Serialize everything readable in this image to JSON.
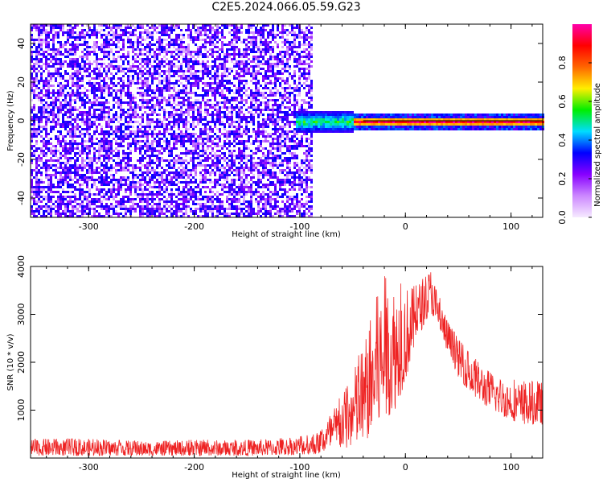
{
  "title": "C2E5.2024.066.05.59.G23",
  "colors": {
    "background": "#ffffff",
    "snr_line": "#ee2222",
    "spectrogram_noise": "#6a00ff",
    "colormap": [
      "#f6eaff",
      "#cc88ff",
      "#8800ff",
      "#0000ff",
      "#00ddff",
      "#00ee00",
      "#ffee00",
      "#ff6600",
      "#ff0000",
      "#ff00aa"
    ]
  },
  "chart_data": [
    {
      "type": "heatmap",
      "title": "",
      "xlabel": "Height of straight line (km)",
      "ylabel": "Frequency (Hz)",
      "xlim": [
        -355,
        130
      ],
      "ylim": [
        -50,
        50
      ],
      "xticks": [
        -300,
        -200,
        -100,
        0,
        100
      ],
      "xtick_labels": [
        "-300",
        "-200",
        "-100",
        "0",
        "100"
      ],
      "yticks": [
        -40,
        -20,
        0,
        20,
        40
      ],
      "ytick_labels": [
        "-40",
        "-20",
        "0",
        "20",
        "40"
      ],
      "grid": false,
      "colorbar": {
        "label": "Normalized spectral amplitude",
        "range": [
          0,
          1
        ],
        "ticks": [
          0.0,
          0.2,
          0.4,
          0.6,
          0.8
        ],
        "tick_labels": [
          "0.0",
          "0.2",
          "0.4",
          "0.6",
          "0.8"
        ],
        "position": "right"
      },
      "regions": [
        {
          "x_range": [
            -355,
            -90
          ],
          "description": "broadband noise, amplitude 0.05-0.3 across all frequencies"
        },
        {
          "x_range": [
            -105,
            -50
          ],
          "freq_center": 0,
          "freq_halfwidth": 6,
          "amplitude_range": [
            0.25,
            0.6
          ]
        },
        {
          "x_range": [
            -50,
            130
          ],
          "freq_center": 0,
          "freq_halfwidth": 2,
          "amplitude_range": [
            0.6,
            1.0
          ]
        }
      ],
      "peak_line": {
        "x_range": [
          -40,
          130
        ],
        "frequency": 0
      }
    },
    {
      "type": "line",
      "title": "",
      "xlabel": "Height of straight line (km)",
      "ylabel": "SNR (10 * v/v)",
      "xlim": [
        -355,
        130
      ],
      "ylim": [
        0,
        4000
      ],
      "xticks": [
        -300,
        -200,
        -100,
        0,
        100
      ],
      "xtick_labels": [
        "-300",
        "-200",
        "-100",
        "0",
        "100"
      ],
      "yticks": [
        1000,
        2000,
        3000,
        4000
      ],
      "ytick_labels": [
        "1000",
        "2000",
        "3000",
        "4000"
      ],
      "grid": false,
      "series": [
        {
          "color": "#ee2222",
          "envelope": {
            "x": [
              -355,
              -300,
              -250,
              -200,
              -150,
              -110,
              -85,
              -70,
              -55,
              -40,
              -30,
              -20,
              -10,
              0,
              10,
              20,
              25,
              30,
              40,
              50,
              60,
              75,
              90,
              110,
              130
            ],
            "y_low": [
              50,
              50,
              50,
              50,
              50,
              60,
              80,
              150,
              200,
              300,
              500,
              800,
              1000,
              1600,
              2400,
              2900,
              3000,
              2700,
              2200,
              1700,
              1400,
              1100,
              900,
              700,
              700
            ],
            "y_high": [
              400,
              400,
              350,
              380,
              380,
              420,
              500,
              1000,
              1500,
              2400,
              3200,
              3800,
              3700,
              3600,
              3600,
              3900,
              4000,
              3500,
              2900,
              2500,
              2200,
              1900,
              1700,
              1600,
              1600
            ]
          }
        }
      ]
    }
  ]
}
